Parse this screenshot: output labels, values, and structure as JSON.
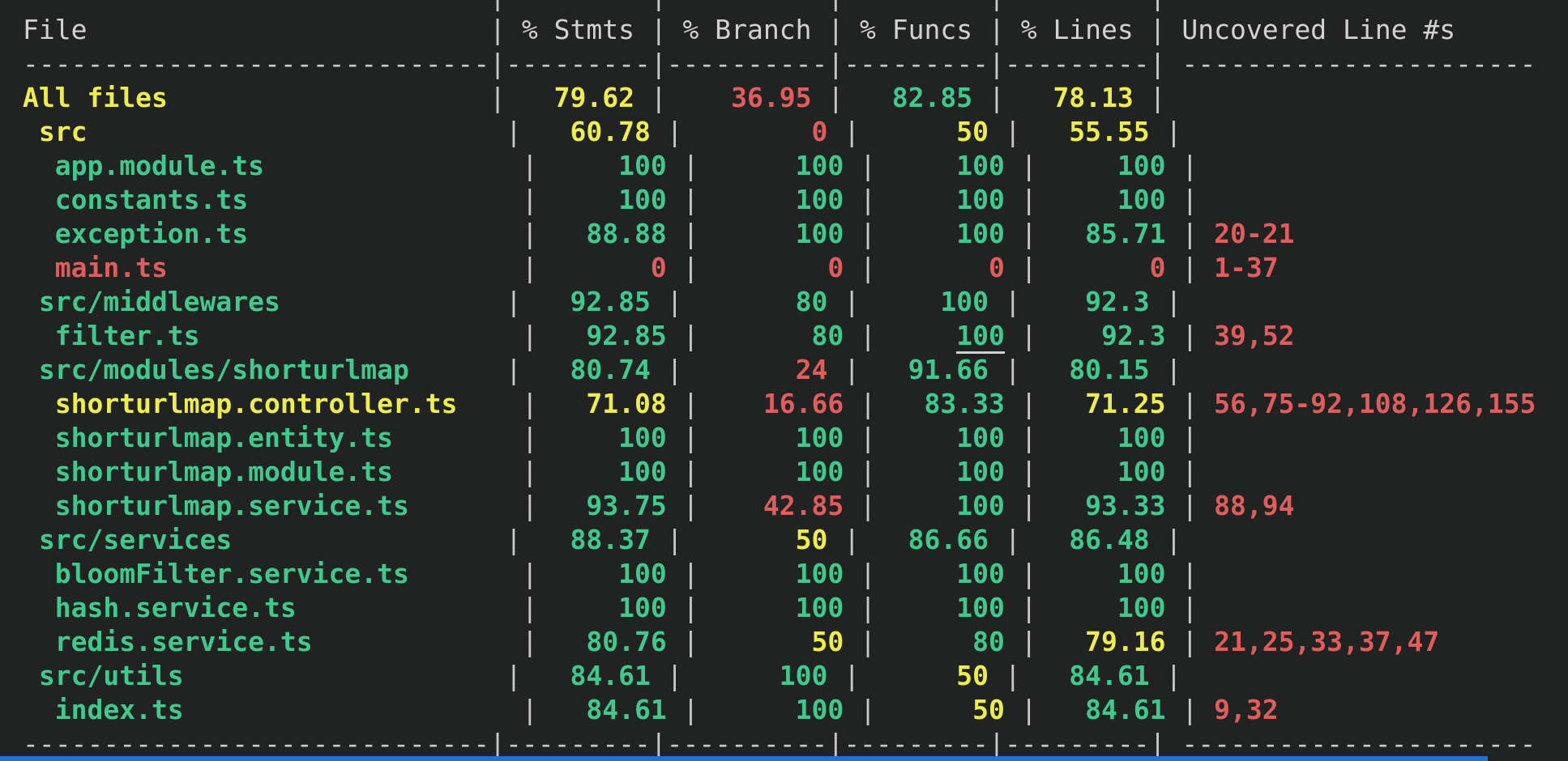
{
  "terminal": {
    "accent_bottom_color": "#1e71d8",
    "colors": {
      "green": "#41c98d",
      "yellow": "#eded51",
      "red": "#e05d5d",
      "gray": "#d2d2d2",
      "background": "#212323"
    },
    "table": {
      "columns": [
        "File",
        "% Stmts",
        "% Branch",
        "% Funcs",
        "% Lines",
        "Uncovered Line #s"
      ],
      "rows": [
        {
          "file": "All files",
          "indent": 0,
          "fc": "y",
          "stmts": "79.62",
          "sc": "y",
          "branch": "36.95",
          "bc": "r",
          "funcs": "82.85",
          "fnc": "g",
          "lines": "78.13",
          "lc": "y",
          "uncovered": "",
          "uc": "r"
        },
        {
          "file": "src",
          "indent": 1,
          "fc": "y",
          "stmts": "60.78",
          "sc": "y",
          "branch": "0",
          "bc": "r",
          "funcs": "50",
          "fnc": "y",
          "lines": "55.55",
          "lc": "y",
          "uncovered": "",
          "uc": "r"
        },
        {
          "file": "app.module.ts",
          "indent": 2,
          "fc": "g",
          "stmts": "100",
          "sc": "g",
          "branch": "100",
          "bc": "g",
          "funcs": "100",
          "fnc": "g",
          "lines": "100",
          "lc": "g",
          "uncovered": "",
          "uc": "r"
        },
        {
          "file": "constants.ts",
          "indent": 2,
          "fc": "g",
          "stmts": "100",
          "sc": "g",
          "branch": "100",
          "bc": "g",
          "funcs": "100",
          "fnc": "g",
          "lines": "100",
          "lc": "g",
          "uncovered": "",
          "uc": "r"
        },
        {
          "file": "exception.ts",
          "indent": 2,
          "fc": "g",
          "stmts": "88.88",
          "sc": "g",
          "branch": "100",
          "bc": "g",
          "funcs": "100",
          "fnc": "g",
          "lines": "85.71",
          "lc": "g",
          "uncovered": "20-21",
          "uc": "r"
        },
        {
          "file": "main.ts",
          "indent": 2,
          "fc": "r",
          "stmts": "0",
          "sc": "r",
          "branch": "0",
          "bc": "r",
          "funcs": "0",
          "fnc": "r",
          "lines": "0",
          "lc": "r",
          "uncovered": "1-37",
          "uc": "r"
        },
        {
          "file": "src/middlewares",
          "indent": 1,
          "fc": "g",
          "stmts": "92.85",
          "sc": "g",
          "branch": "80",
          "bc": "g",
          "funcs": "100",
          "fnc": "g",
          "lines": "92.3",
          "lc": "g",
          "uncovered": "",
          "uc": "r"
        },
        {
          "file": "filter.ts",
          "indent": 2,
          "fc": "g",
          "stmts": "92.85",
          "sc": "g",
          "branch": "80",
          "bc": "g",
          "funcs": "100",
          "fnc": "g",
          "funcs_underline": true,
          "lines": "92.3",
          "lc": "g",
          "uncovered": "39,52",
          "uc": "r"
        },
        {
          "file": "src/modules/shorturlmap",
          "indent": 1,
          "fc": "g",
          "stmts": "80.74",
          "sc": "g",
          "branch": "24",
          "bc": "r",
          "funcs": "91.66",
          "fnc": "g",
          "lines": "80.15",
          "lc": "g",
          "uncovered": "",
          "uc": "r"
        },
        {
          "file": "shorturlmap.controller.ts",
          "indent": 2,
          "fc": "y",
          "stmts": "71.08",
          "sc": "y",
          "branch": "16.66",
          "bc": "r",
          "funcs": "83.33",
          "fnc": "g",
          "lines": "71.25",
          "lc": "y",
          "uncovered": "56,75-92,108,126,155",
          "uc": "r"
        },
        {
          "file": "shorturlmap.entity.ts",
          "indent": 2,
          "fc": "g",
          "stmts": "100",
          "sc": "g",
          "branch": "100",
          "bc": "g",
          "funcs": "100",
          "fnc": "g",
          "lines": "100",
          "lc": "g",
          "uncovered": "",
          "uc": "r"
        },
        {
          "file": "shorturlmap.module.ts",
          "indent": 2,
          "fc": "g",
          "stmts": "100",
          "sc": "g",
          "branch": "100",
          "bc": "g",
          "funcs": "100",
          "fnc": "g",
          "lines": "100",
          "lc": "g",
          "uncovered": "",
          "uc": "r"
        },
        {
          "file": "shorturlmap.service.ts",
          "indent": 2,
          "fc": "g",
          "stmts": "93.75",
          "sc": "g",
          "branch": "42.85",
          "bc": "r",
          "funcs": "100",
          "fnc": "g",
          "lines": "93.33",
          "lc": "g",
          "uncovered": "88,94",
          "uc": "r"
        },
        {
          "file": "src/services",
          "indent": 1,
          "fc": "g",
          "stmts": "88.37",
          "sc": "g",
          "branch": "50",
          "bc": "y",
          "funcs": "86.66",
          "fnc": "g",
          "lines": "86.48",
          "lc": "g",
          "uncovered": "",
          "uc": "r"
        },
        {
          "file": "bloomFilter.service.ts",
          "indent": 2,
          "fc": "g",
          "stmts": "100",
          "sc": "g",
          "branch": "100",
          "bc": "g",
          "funcs": "100",
          "fnc": "g",
          "lines": "100",
          "lc": "g",
          "uncovered": "",
          "uc": "r"
        },
        {
          "file": "hash.service.ts",
          "indent": 2,
          "fc": "g",
          "stmts": "100",
          "sc": "g",
          "branch": "100",
          "bc": "g",
          "funcs": "100",
          "fnc": "g",
          "lines": "100",
          "lc": "g",
          "uncovered": "",
          "uc": "r"
        },
        {
          "file": "redis.service.ts",
          "indent": 2,
          "fc": "g",
          "stmts": "80.76",
          "sc": "g",
          "branch": "50",
          "bc": "y",
          "funcs": "80",
          "fnc": "g",
          "lines": "79.16",
          "lc": "y",
          "uncovered": "21,25,33,37,47",
          "uc": "r"
        },
        {
          "file": "src/utils",
          "indent": 1,
          "fc": "g",
          "stmts": "84.61",
          "sc": "g",
          "branch": "100",
          "bc": "g",
          "funcs": "50",
          "fnc": "y",
          "lines": "84.61",
          "lc": "g",
          "uncovered": "",
          "uc": "r"
        },
        {
          "file": "index.ts",
          "indent": 2,
          "fc": "g",
          "stmts": "84.61",
          "sc": "g",
          "branch": "100",
          "bc": "g",
          "funcs": "50",
          "fnc": "y",
          "lines": "84.61",
          "lc": "g",
          "uncovered": "9,32",
          "uc": "r"
        }
      ]
    },
    "separator": {
      "file_dashes": "-----------------------------",
      "n1_dashes": "---------",
      "n2_dashes": "----------",
      "n3_dashes": "---------",
      "n4_dashes": "---------",
      "unc_dashes": "----------------------",
      "pipe": "|"
    }
  }
}
